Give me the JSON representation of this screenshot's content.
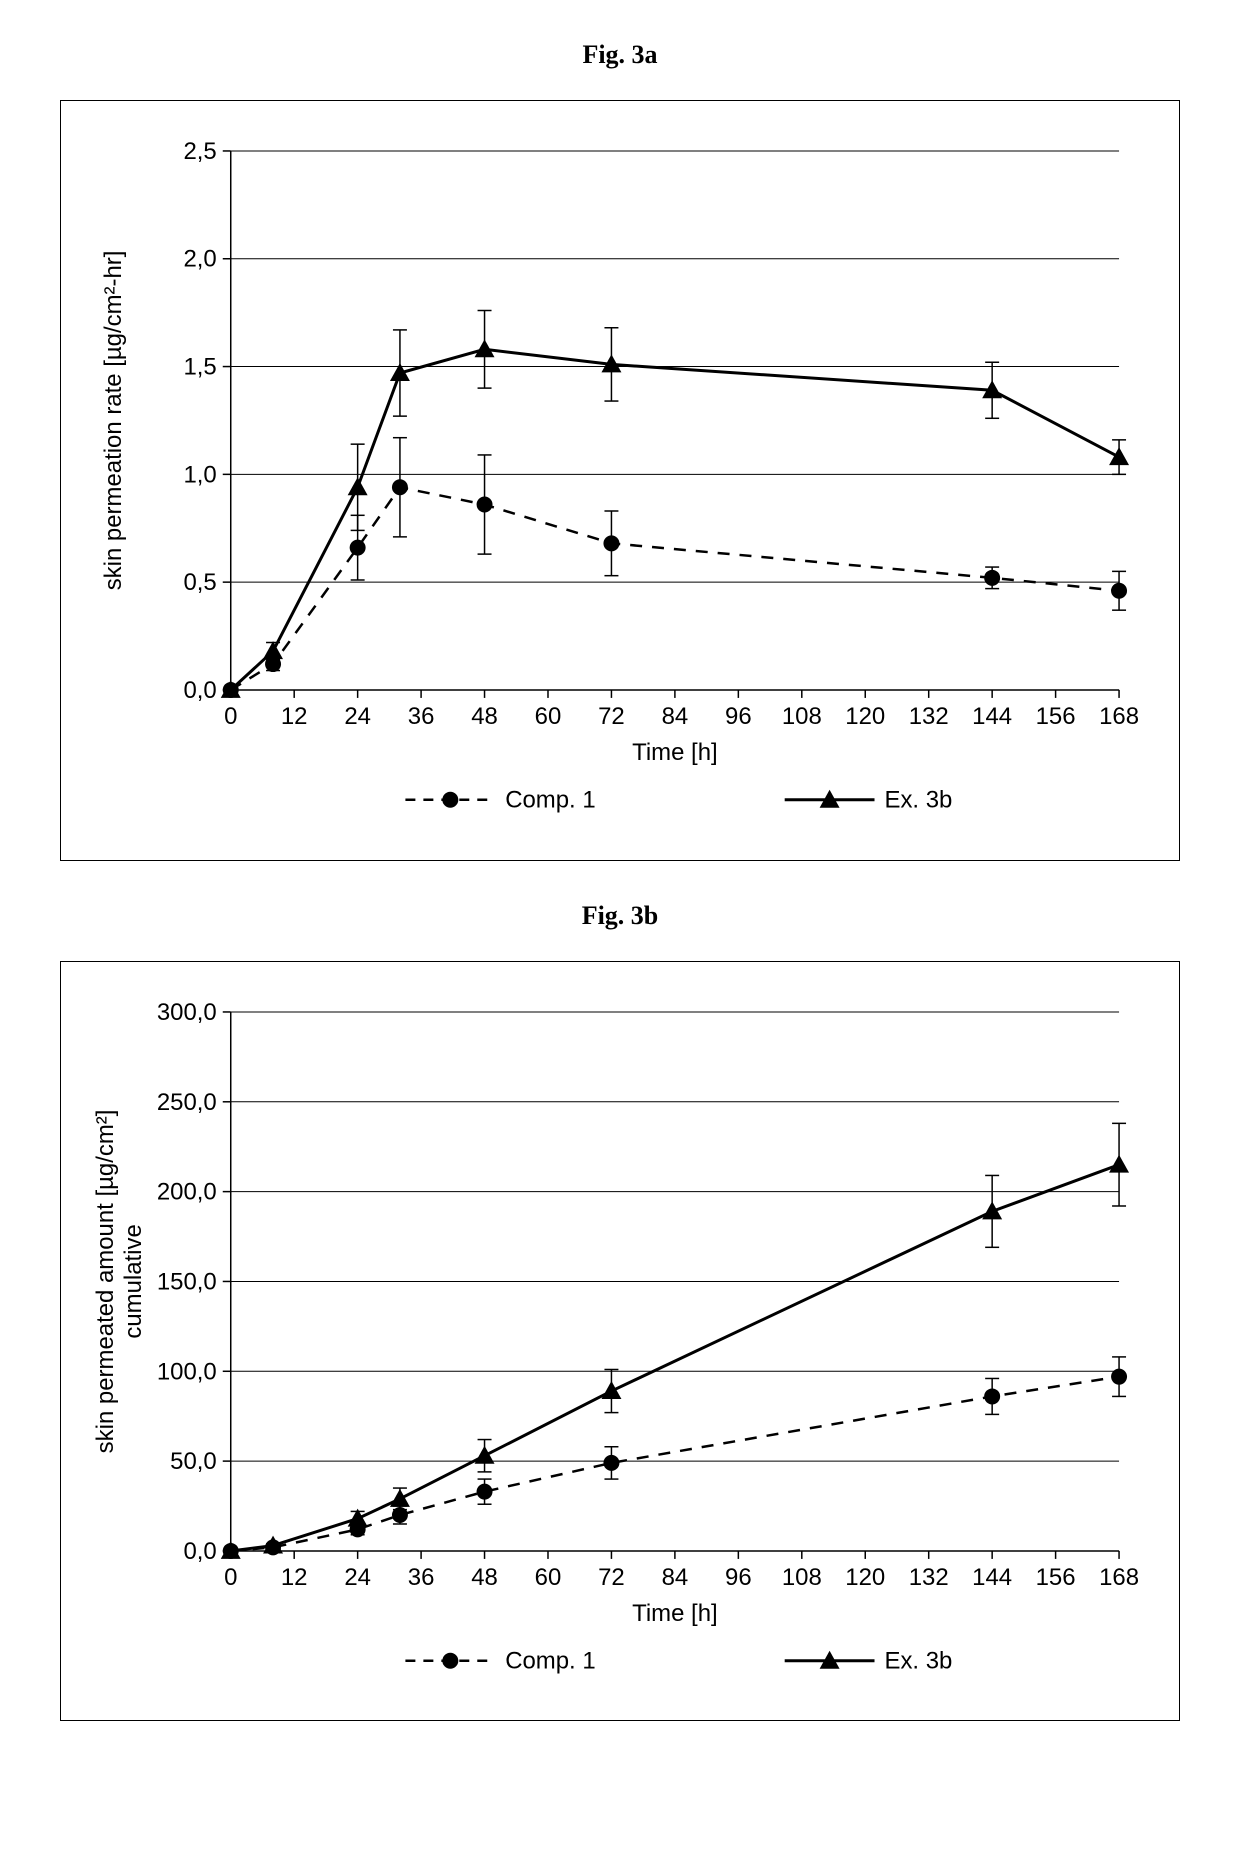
{
  "figA": {
    "title": "Fig. 3a",
    "type": "line",
    "xlabel": "Time [h]",
    "ylabel": "skin permeation rate [µg/cm²-hr]",
    "xlim": [
      0,
      168
    ],
    "ylim": [
      0,
      2.5
    ],
    "xtick_step": 12,
    "ytick_step": 0.5,
    "xticks": [
      0,
      12,
      24,
      36,
      48,
      60,
      72,
      84,
      96,
      108,
      120,
      132,
      144,
      156,
      168
    ],
    "yticks": [
      0,
      0.5,
      1.0,
      1.5,
      2.0,
      2.5
    ],
    "ytick_labels": [
      "0,0",
      "0,5",
      "1,0",
      "1,5",
      "2,0",
      "2,5"
    ],
    "background_color": "#ffffff",
    "grid_color": "#000000",
    "border_color": "#000000",
    "tick_font_size": 24,
    "label_font_size": 24,
    "series": [
      {
        "name": "Comp. 1",
        "marker": "circle",
        "line_dash": "dashed",
        "line_width": 2.5,
        "color": "#000000",
        "x": [
          0,
          8,
          24,
          32,
          48,
          72,
          144,
          168
        ],
        "y": [
          0,
          0.12,
          0.66,
          0.94,
          0.86,
          0.68,
          0.52,
          0.46
        ],
        "err": [
          0,
          0.03,
          0.15,
          0.23,
          0.23,
          0.15,
          0.05,
          0.09
        ]
      },
      {
        "name": "Ex. 3b",
        "marker": "triangle",
        "line_dash": "solid",
        "line_width": 3,
        "color": "#000000",
        "x": [
          0,
          8,
          24,
          32,
          48,
          72,
          144,
          168
        ],
        "y": [
          0,
          0.18,
          0.94,
          1.47,
          1.58,
          1.51,
          1.39,
          1.08
        ],
        "err": [
          0,
          0.04,
          0.2,
          0.2,
          0.18,
          0.17,
          0.13,
          0.08
        ]
      }
    ]
  },
  "figB": {
    "title": "Fig. 3b",
    "type": "line",
    "xlabel": "Time [h]",
    "ylabel_line1": "skin permeated amount [µg/cm²]",
    "ylabel_line2": "cumulative",
    "xlim": [
      0,
      168
    ],
    "ylim": [
      0,
      300
    ],
    "xtick_step": 12,
    "ytick_step": 50,
    "xticks": [
      0,
      12,
      24,
      36,
      48,
      60,
      72,
      84,
      96,
      108,
      120,
      132,
      144,
      156,
      168
    ],
    "yticks": [
      0,
      50,
      100,
      150,
      200,
      250,
      300
    ],
    "ytick_labels": [
      "0,0",
      "50,0",
      "100,0",
      "150,0",
      "200,0",
      "250,0",
      "300,0"
    ],
    "background_color": "#ffffff",
    "grid_color": "#000000",
    "border_color": "#000000",
    "tick_font_size": 24,
    "label_font_size": 24,
    "series": [
      {
        "name": "Comp. 1",
        "marker": "circle",
        "line_dash": "dashed",
        "line_width": 2.5,
        "color": "#000000",
        "x": [
          0,
          8,
          24,
          32,
          48,
          72,
          144,
          168
        ],
        "y": [
          0,
          2,
          12,
          20,
          33,
          49,
          86,
          97
        ],
        "err": [
          0,
          1,
          3,
          5,
          7,
          9,
          10,
          11
        ]
      },
      {
        "name": "Ex. 3b",
        "marker": "triangle",
        "line_dash": "solid",
        "line_width": 3,
        "color": "#000000",
        "x": [
          0,
          8,
          24,
          32,
          48,
          72,
          144,
          168
        ],
        "y": [
          0,
          3,
          18,
          29,
          53,
          89,
          189,
          215
        ],
        "err": [
          0,
          1,
          4,
          6,
          9,
          12,
          20,
          23
        ]
      }
    ]
  }
}
